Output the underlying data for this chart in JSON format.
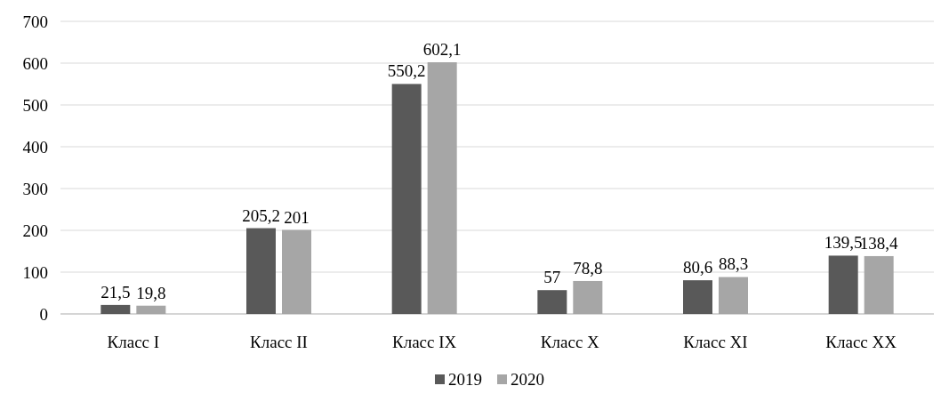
{
  "chart_data": {
    "type": "bar",
    "categories": [
      "Класс I",
      "Класс II",
      "Класс IX",
      "Класс X",
      "Класс XI",
      "Класс XX"
    ],
    "series": [
      {
        "name": "2019",
        "color": "#595959",
        "values": [
          21.5,
          205.2,
          550.2,
          57,
          80.6,
          139.5
        ],
        "value_labels": [
          "21,5",
          "205,2",
          "550,2",
          "57",
          "80,6",
          "139,5"
        ]
      },
      {
        "name": "2020",
        "color": "#a6a6a6",
        "values": [
          19.8,
          201,
          602.1,
          78.8,
          88.3,
          138.4
        ],
        "value_labels": [
          "19,8",
          "201",
          "602,1",
          "78,8",
          "88,3",
          "138,4"
        ]
      }
    ],
    "ylim": [
      0,
      700
    ],
    "yticks": [
      0,
      100,
      200,
      300,
      400,
      500,
      600,
      700
    ],
    "grid": "y",
    "legend": "bottom"
  }
}
